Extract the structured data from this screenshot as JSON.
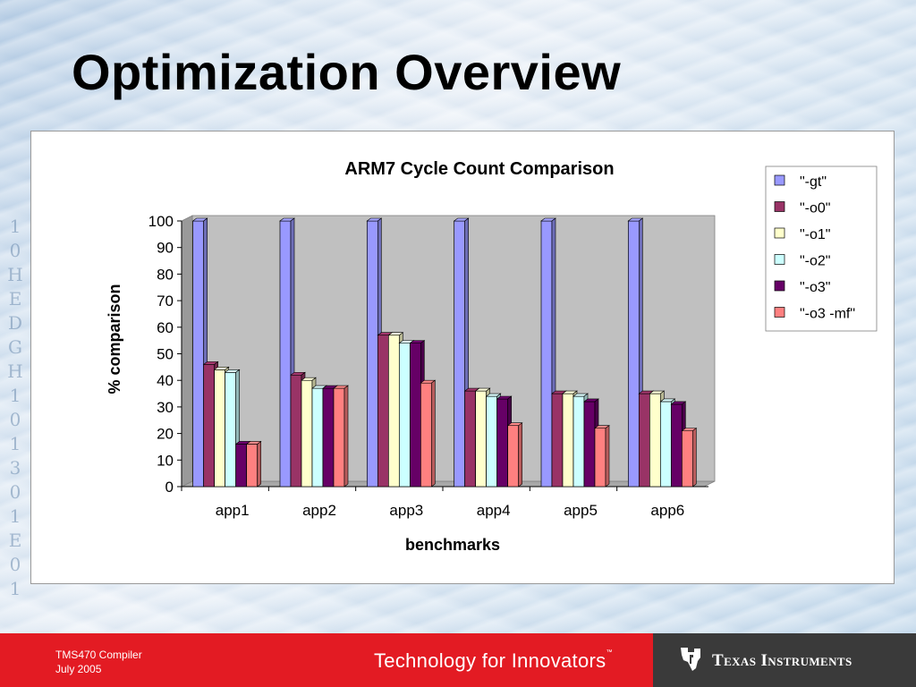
{
  "slide": {
    "title": "Optimization Overview"
  },
  "footer": {
    "course": "TMS470 Compiler",
    "date": "July 2005",
    "slogan": "Technology for Innovators",
    "trademark": "™",
    "company": "Texas Instruments"
  },
  "colors": {
    "footer_red": "#e31b23",
    "footer_dark": "#3a3a3a",
    "plot_background": "#c0c0c0"
  },
  "chart_data": {
    "type": "bar",
    "title": "ARM7 Cycle Count Comparison",
    "xlabel": "benchmarks",
    "ylabel": "% comparison",
    "categories": [
      "app1",
      "app2",
      "app3",
      "app4",
      "app5",
      "app6"
    ],
    "ylim": [
      0,
      100
    ],
    "yticks": [
      0,
      10,
      20,
      30,
      40,
      50,
      60,
      70,
      80,
      90,
      100
    ],
    "grid": false,
    "legend_position": "right",
    "style": "3d-clustered",
    "series": [
      {
        "name": "\"-gt\"",
        "color": "#9999ff",
        "values": [
          100,
          100,
          100,
          100,
          100,
          100
        ]
      },
      {
        "name": "\"-o0\"",
        "color": "#993366",
        "values": [
          46,
          42,
          57,
          36,
          35,
          35
        ]
      },
      {
        "name": "\"-o1\"",
        "color": "#ffffcc",
        "values": [
          44,
          40,
          57,
          36,
          35,
          35
        ]
      },
      {
        "name": "\"-o2\"",
        "color": "#ccffff",
        "values": [
          43,
          37,
          54,
          34,
          34,
          32
        ]
      },
      {
        "name": "\"-o3\"",
        "color": "#660066",
        "values": [
          16,
          37,
          54,
          33,
          32,
          31
        ]
      },
      {
        "name": "\"-o3 -mf\"",
        "color": "#ff8080",
        "values": [
          16,
          37,
          39,
          23,
          22,
          21
        ]
      }
    ]
  }
}
